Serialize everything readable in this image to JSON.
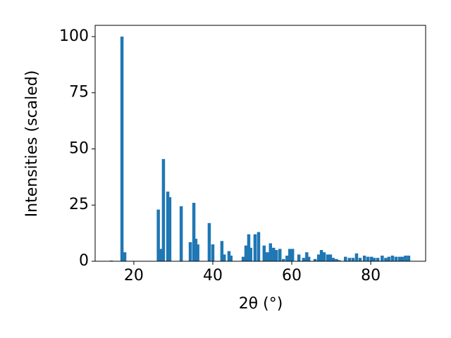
{
  "chart_data": {
    "type": "bar",
    "x_label": "2θ (°)",
    "y_label": "Intensities (scaled)",
    "color": "#1f77b4",
    "x": [
      14.3,
      17.0,
      17.7,
      26.2,
      26.8,
      27.5,
      28.6,
      29.1,
      32.0,
      34.3,
      35.2,
      35.7,
      36.2,
      39.1,
      40.0,
      42.3,
      42.9,
      44.1,
      44.6,
      47.7,
      48.4,
      49.1,
      49.6,
      50.7,
      51.6,
      53.0,
      53.8,
      54.6,
      55.4,
      56.1,
      57.0,
      57.9,
      58.8,
      59.5,
      60.2,
      61.8,
      63.0,
      63.8,
      64.3,
      65.9,
      66.8,
      67.5,
      68.2,
      69.1,
      69.8,
      70.5,
      71.3,
      72.0,
      73.6,
      74.6,
      75.5,
      76.4,
      77.3,
      78.4,
      79.3,
      80.2,
      80.9,
      81.8,
      82.9,
      83.8,
      84.6,
      85.5,
      86.4,
      87.3,
      88.0,
      88.8,
      89.6
    ],
    "values": [
      0.3,
      100,
      4,
      23,
      5.5,
      45.5,
      31,
      28.5,
      24.5,
      8.5,
      26,
      10,
      7.5,
      17,
      7.5,
      9,
      3,
      4.5,
      2.5,
      2,
      7,
      12,
      6,
      12,
      13,
      7,
      4,
      8,
      6,
      5,
      5.5,
      1,
      2.5,
      5.5,
      5.5,
      3,
      1.5,
      4,
      2,
      1,
      3,
      5,
      4,
      3,
      3,
      1.5,
      1,
      0.5,
      2,
      1.5,
      1.5,
      3.5,
      1.5,
      2.5,
      2,
      2,
      1.5,
      1.5,
      2.5,
      1.5,
      2,
      2.5,
      2,
      2,
      2,
      2.5,
      2.5
    ],
    "xlim": [
      10.2,
      93.9
    ],
    "ylim": [
      0,
      105
    ],
    "xticks": [
      20,
      40,
      60,
      80
    ],
    "yticks": [
      0,
      25,
      50,
      75,
      100
    ]
  }
}
